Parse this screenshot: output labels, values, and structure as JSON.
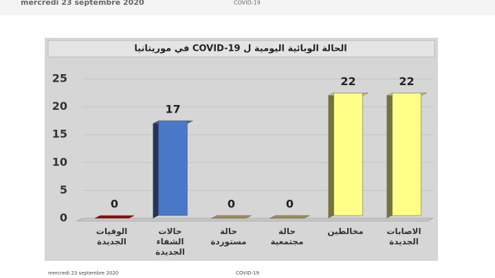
{
  "header": {
    "date": "mercredi 23 septembre 2020",
    "topic": "COVID-19"
  },
  "footer": {
    "date": "mercredi 23 septembre 2020",
    "topic": "COVID-19"
  },
  "chart_data": {
    "type": "bar",
    "title": "الحالة الوبائية اليومية ل  COVID-19 في موريتانيا",
    "categories": [
      "الوفيات الجديدة",
      "حالات الشفاء الجديدة",
      "حالة مستوردة",
      "حالة مجتمعية",
      "مخالطين",
      "الاصابات الجديدة"
    ],
    "values": [
      0,
      17,
      0,
      0,
      22,
      22
    ],
    "colors": [
      "#c00000",
      "#4a78c8",
      "#c8b468",
      "#c8b468",
      "#ffff88",
      "#ffff88"
    ],
    "ylim": [
      0,
      25
    ],
    "yticks": [
      0,
      5,
      10,
      15,
      20,
      25
    ],
    "grid": true
  }
}
